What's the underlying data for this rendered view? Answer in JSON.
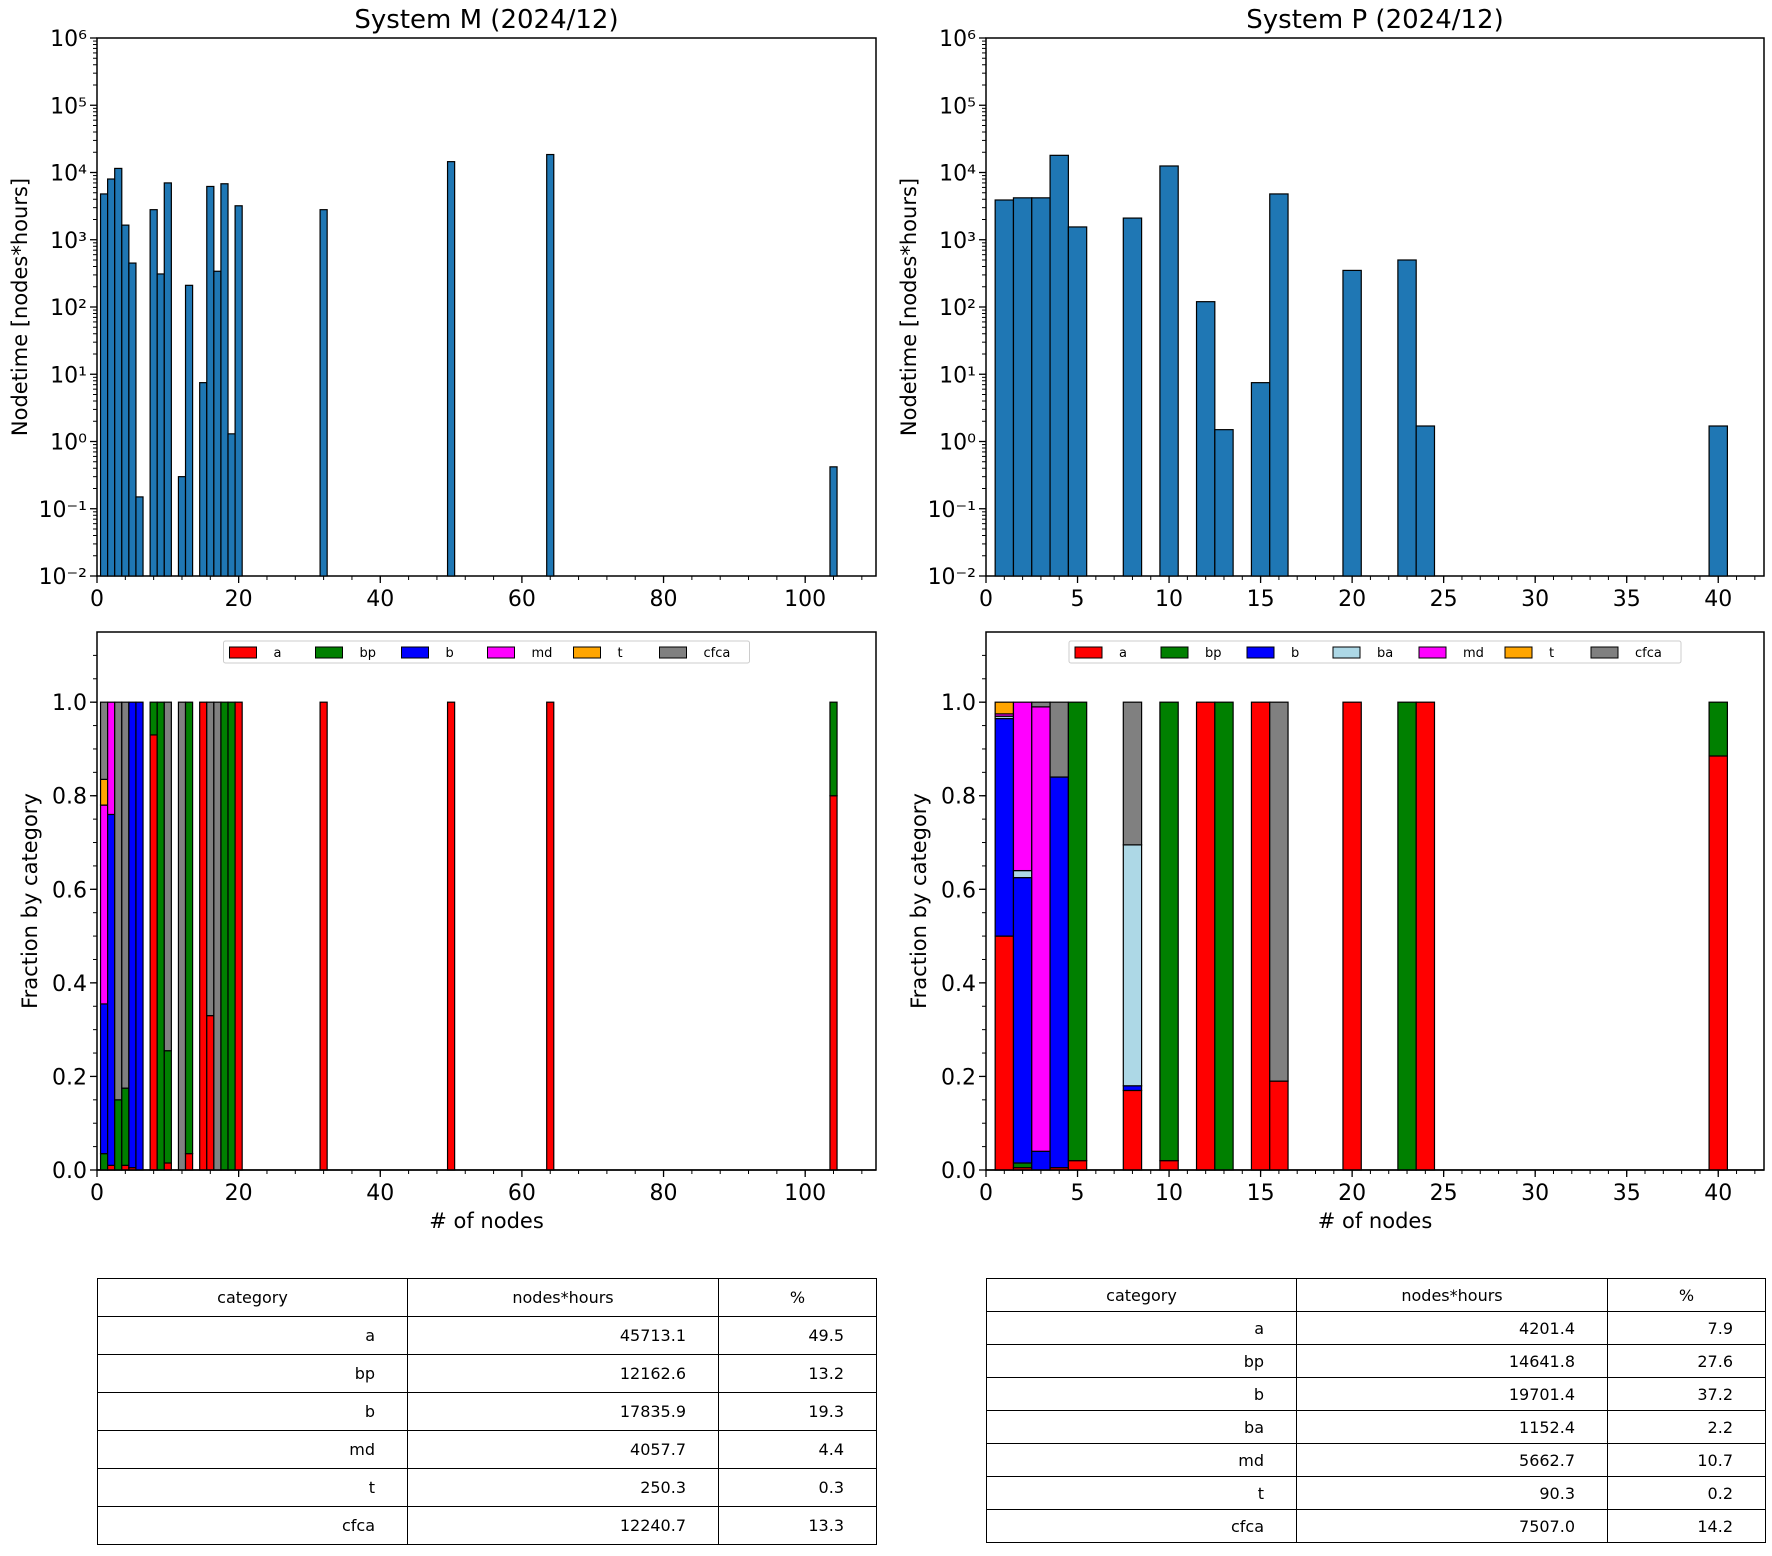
{
  "colors": {
    "bar": "#1f77b4",
    "a": "#ff0000",
    "bp": "#008000",
    "b": "#0000ff",
    "ba": "#add8e6",
    "md": "#ff00ff",
    "t": "#ffa500",
    "cfca": "#808080"
  },
  "chart_data": [
    {
      "id": "m-hist",
      "type": "bar",
      "title": "System M (2024/12)",
      "xlabel": "",
      "ylabel": "Nodetime [nodes*hours]",
      "yscale": "log",
      "xlim": [
        0,
        110
      ],
      "ylim": [
        0.01,
        1000000
      ],
      "xticks": [
        "0",
        "20",
        "40",
        "60",
        "80",
        "100"
      ],
      "yticks": [
        "10⁻²",
        "10⁻¹",
        "10⁰",
        "10¹",
        "10²",
        "10³",
        "10⁴",
        "10⁵",
        "10⁶"
      ],
      "x": [
        1,
        2,
        3,
        4,
        5,
        6,
        8,
        9,
        10,
        12,
        13,
        15,
        16,
        17,
        18,
        19,
        20,
        32,
        50,
        64,
        104
      ],
      "values": [
        4800,
        8000,
        11500,
        1650,
        450,
        0.15,
        2800,
        310,
        7000,
        0.3,
        210,
        7.5,
        6200,
        340,
        6800,
        1.3,
        3200,
        2800,
        14500,
        18500,
        0.42
      ]
    },
    {
      "id": "p-hist",
      "type": "bar",
      "title": "System P (2024/12)",
      "xlabel": "",
      "ylabel": "Nodetime [nodes*hours]",
      "yscale": "log",
      "xlim": [
        0,
        42.5
      ],
      "ylim": [
        0.01,
        1000000
      ],
      "xticks": [
        "0",
        "5",
        "10",
        "15",
        "20",
        "25",
        "30",
        "35",
        "40"
      ],
      "yticks": [
        "10⁻²",
        "10⁻¹",
        "10⁰",
        "10¹",
        "10²",
        "10³",
        "10⁴",
        "10⁵",
        "10⁶"
      ],
      "x": [
        1,
        2,
        3,
        4,
        5,
        8,
        10,
        12,
        13,
        15,
        16,
        20,
        23,
        24,
        40
      ],
      "values": [
        3900,
        4200,
        4200,
        18000,
        1550,
        2100,
        12500,
        120,
        1.5,
        7.5,
        4800,
        350,
        500,
        1.7,
        1.7
      ]
    },
    {
      "id": "m-frac",
      "type": "bar",
      "stacked": true,
      "xlabel": "# of nodes",
      "ylabel": "Fraction by category",
      "xlim": [
        0,
        110
      ],
      "ylim": [
        0,
        1.15
      ],
      "xticks": [
        "0",
        "20",
        "40",
        "60",
        "80",
        "100"
      ],
      "yticks": [
        "0.0",
        "0.2",
        "0.4",
        "0.6",
        "0.8",
        "1.0"
      ],
      "legend": [
        "a",
        "bp",
        "b",
        "md",
        "t",
        "cfca"
      ],
      "legend_position": "top-center",
      "x": [
        1,
        2,
        3,
        4,
        5,
        6,
        8,
        9,
        10,
        12,
        13,
        15,
        16,
        17,
        18,
        19,
        20,
        32,
        50,
        64,
        104
      ],
      "series": [
        {
          "name": "a",
          "values": [
            0,
            0.01,
            0,
            0.01,
            0.005,
            0,
            0.93,
            0,
            0.015,
            0,
            0.035,
            1,
            0.33,
            0,
            0,
            0,
            1,
            1,
            1,
            1,
            0.8
          ]
        },
        {
          "name": "bp",
          "values": [
            0.035,
            0,
            0.15,
            0.165,
            0,
            0,
            0.07,
            1,
            0.24,
            0,
            0.965,
            0,
            0,
            0,
            1,
            1,
            0,
            0,
            0,
            0,
            0.2
          ]
        },
        {
          "name": "b",
          "values": [
            0.32,
            0.75,
            0,
            0,
            0.995,
            1,
            0,
            0,
            0,
            0,
            0,
            0,
            0,
            0,
            0,
            0,
            0,
            0,
            0,
            0,
            0
          ]
        },
        {
          "name": "md",
          "values": [
            0.425,
            0.24,
            0,
            0,
            0,
            0,
            0,
            0,
            0,
            0,
            0,
            0,
            0,
            0,
            0,
            0,
            0,
            0,
            0,
            0,
            0
          ]
        },
        {
          "name": "t",
          "values": [
            0.055,
            0,
            0,
            0,
            0,
            0,
            0,
            0,
            0,
            0,
            0,
            0,
            0,
            0,
            0,
            0,
            0,
            0,
            0,
            0,
            0
          ]
        },
        {
          "name": "cfca",
          "values": [
            0.165,
            0,
            0.85,
            0.825,
            0,
            0,
            0,
            0,
            0.745,
            1,
            0,
            0,
            0.67,
            1,
            0,
            0,
            0,
            0,
            0,
            0,
            0
          ]
        }
      ]
    },
    {
      "id": "p-frac",
      "type": "bar",
      "stacked": true,
      "xlabel": "# of nodes",
      "ylabel": "Fraction by category",
      "xlim": [
        0,
        42.5
      ],
      "ylim": [
        0,
        1.15
      ],
      "xticks": [
        "0",
        "5",
        "10",
        "15",
        "20",
        "25",
        "30",
        "35",
        "40"
      ],
      "yticks": [
        "0.0",
        "0.2",
        "0.4",
        "0.6",
        "0.8",
        "1.0"
      ],
      "legend": [
        "a",
        "bp",
        "b",
        "ba",
        "md",
        "t",
        "cfca"
      ],
      "legend_position": "top-center",
      "x": [
        1,
        2,
        3,
        4,
        5,
        8,
        10,
        12,
        13,
        15,
        16,
        20,
        23,
        24,
        40
      ],
      "series": [
        {
          "name": "a",
          "values": [
            0.5,
            0.005,
            0,
            0.005,
            0.02,
            0.17,
            0.02,
            1,
            0,
            1,
            0.19,
            1,
            0,
            1,
            0.885
          ]
        },
        {
          "name": "bp",
          "values": [
            0,
            0.01,
            0,
            0,
            0.98,
            0,
            0.98,
            0,
            1,
            0,
            0,
            0,
            1,
            0,
            0.115
          ]
        },
        {
          "name": "b",
          "values": [
            0.465,
            0.61,
            0.04,
            0.835,
            0,
            0.01,
            0,
            0,
            0,
            0,
            0,
            0,
            0,
            0,
            0
          ]
        },
        {
          "name": "ba",
          "values": [
            0.005,
            0.015,
            0,
            0,
            0,
            0.515,
            0,
            0,
            0,
            0,
            0,
            0,
            0,
            0,
            0
          ]
        },
        {
          "name": "md",
          "values": [
            0.005,
            0.36,
            0.95,
            0,
            0,
            0,
            0,
            0,
            0,
            0,
            0,
            0,
            0,
            0,
            0
          ]
        },
        {
          "name": "t",
          "values": [
            0.025,
            0,
            0,
            0,
            0,
            0,
            0,
            0,
            0,
            0,
            0,
            0,
            0,
            0,
            0
          ]
        },
        {
          "name": "cfca",
          "values": [
            0,
            0,
            0.01,
            0.16,
            0,
            0.305,
            0,
            0,
            0,
            0,
            0.81,
            0,
            0,
            0,
            0
          ]
        }
      ]
    },
    {
      "id": "m-table",
      "type": "table",
      "columns": [
        "category",
        "nodes*hours",
        "%"
      ],
      "rows": [
        [
          "a",
          "45713.1",
          "49.5"
        ],
        [
          "bp",
          "12162.6",
          "13.2"
        ],
        [
          "b",
          "17835.9",
          "19.3"
        ],
        [
          "md",
          "4057.7",
          "4.4"
        ],
        [
          "t",
          "250.3",
          "0.3"
        ],
        [
          "cfca",
          "12240.7",
          "13.3"
        ]
      ]
    },
    {
      "id": "p-table",
      "type": "table",
      "columns": [
        "category",
        "nodes*hours",
        "%"
      ],
      "rows": [
        [
          "a",
          "4201.4",
          "7.9"
        ],
        [
          "bp",
          "14641.8",
          "27.6"
        ],
        [
          "b",
          "19701.4",
          "37.2"
        ],
        [
          "ba",
          "1152.4",
          "2.2"
        ],
        [
          "md",
          "5662.7",
          "10.7"
        ],
        [
          "t",
          "90.3",
          "0.2"
        ],
        [
          "cfca",
          "7507.0",
          "14.2"
        ]
      ]
    }
  ]
}
